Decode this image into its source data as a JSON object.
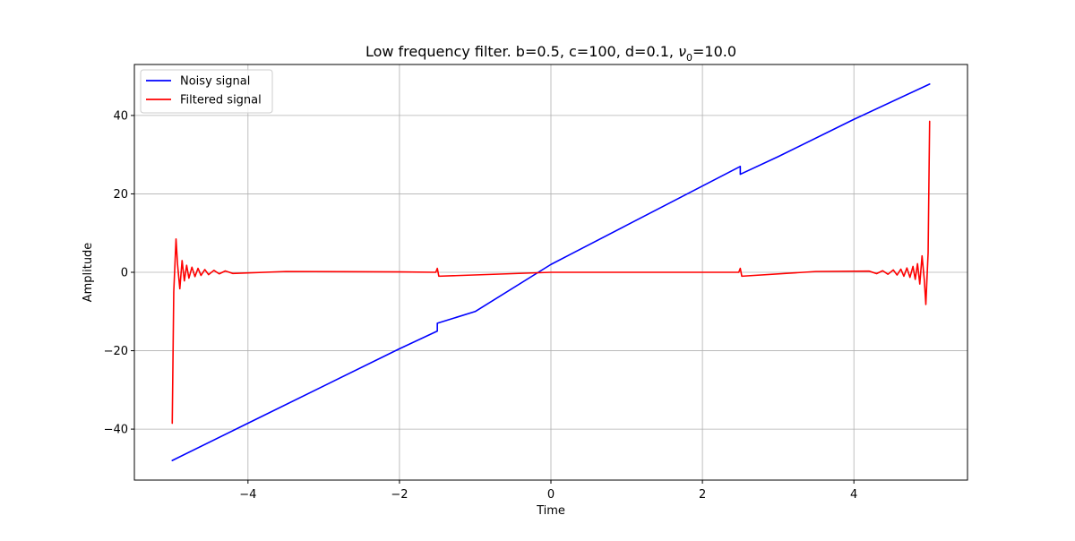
{
  "chart_data": {
    "type": "line",
    "title": "Low frequency filter. b=0.5, c=100, d=0.1, ",
    "title_symbol": "ν",
    "title_subscript": "0",
    "title_suffix": "=10.0",
    "xlabel": "Time",
    "ylabel": "Amplitude",
    "xlim": [
      -5.5,
      5.5
    ],
    "ylim": [
      -53,
      53
    ],
    "xticks": [
      -4,
      -2,
      0,
      2,
      4
    ],
    "xtick_labels": [
      "−4",
      "−2",
      "0",
      "2",
      "4"
    ],
    "yticks": [
      -40,
      -20,
      0,
      20,
      40
    ],
    "ytick_labels": [
      "−40",
      "−20",
      "0",
      "20",
      "40"
    ],
    "grid": true,
    "legend_position": "top-left",
    "series": [
      {
        "name": "Noisy signal",
        "color": "#0000ff",
        "x": [
          -5.0,
          -4.0,
          -3.0,
          -2.0,
          -1.5,
          -1.5,
          -1.0,
          0.0,
          1.0,
          2.0,
          2.5,
          2.5,
          3.0,
          4.0,
          5.0
        ],
        "y": [
          -48.0,
          -38.5,
          -29.0,
          -19.5,
          -15.0,
          -13.0,
          -10.0,
          2.0,
          12.0,
          22.0,
          27.0,
          25.0,
          29.5,
          39.0,
          48.0
        ]
      },
      {
        "name": "Filtered signal",
        "color": "#ff0000",
        "x": [
          -5.0,
          -4.98,
          -4.95,
          -4.93,
          -4.9,
          -4.87,
          -4.84,
          -4.81,
          -4.78,
          -4.74,
          -4.7,
          -4.66,
          -4.62,
          -4.57,
          -4.52,
          -4.45,
          -4.38,
          -4.3,
          -4.2,
          -3.5,
          -2.0,
          -1.52,
          -1.5,
          -1.48,
          0.0,
          2.48,
          2.5,
          2.52,
          3.5,
          4.2,
          4.3,
          4.38,
          4.45,
          4.52,
          4.57,
          4.62,
          4.66,
          4.7,
          4.74,
          4.78,
          4.81,
          4.84,
          4.87,
          4.9,
          4.93,
          4.95,
          4.98,
          5.0
        ],
        "y": [
          -38.5,
          -5.0,
          8.5,
          2.0,
          -4.2,
          3.0,
          -2.2,
          1.8,
          -1.5,
          1.3,
          -1.1,
          1.0,
          -0.8,
          0.7,
          -0.6,
          0.5,
          -0.4,
          0.35,
          -0.3,
          0.2,
          0.1,
          0.0,
          1.0,
          -1.0,
          0.0,
          0.0,
          1.0,
          -1.0,
          0.2,
          0.3,
          -0.35,
          0.4,
          -0.5,
          0.6,
          -0.7,
          0.8,
          -1.0,
          1.1,
          -1.3,
          1.5,
          -1.8,
          2.2,
          -3.0,
          4.2,
          -2.0,
          -8.2,
          5.0,
          38.5
        ]
      }
    ]
  }
}
